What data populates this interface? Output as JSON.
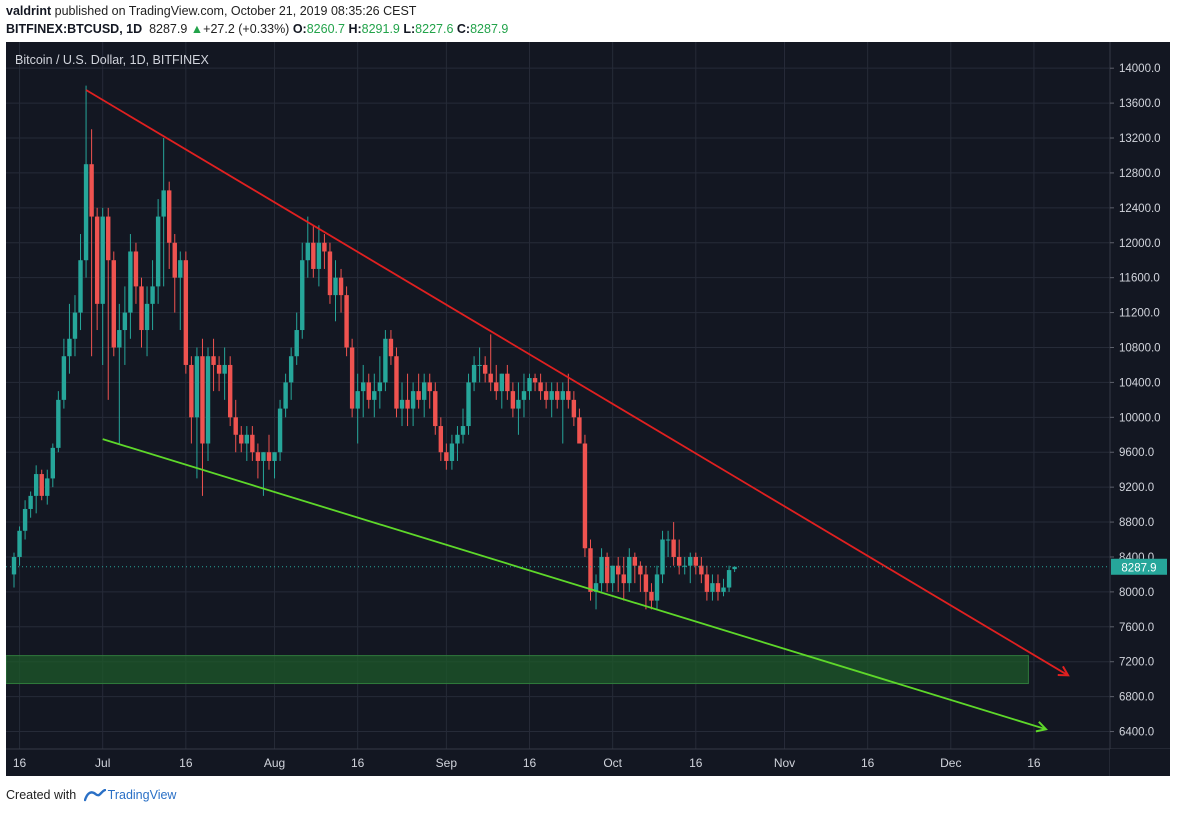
{
  "header": {
    "author": "valdrint",
    "published_text": "published on TradingView.com, October 21, 2019 08:35:26 CEST",
    "symbol": "BITFINEX:BTCUSD, 1D",
    "last": "8287.9",
    "change_arrow": "▲",
    "change": "+27.2 (+0.33%)",
    "o_label": "O:",
    "o_val": "8260.7",
    "h_label": "H:",
    "h_val": "8291.9",
    "l_label": "L:",
    "l_val": "8227.6",
    "c_label": "C:",
    "c_val": "8287.9"
  },
  "footer": {
    "created_with": "Created with",
    "brand": "TradingView"
  },
  "colors": {
    "background": "#131722",
    "up": "#26a69a",
    "down": "#ef5350",
    "resistance": "#e02020",
    "support": "#5ed82a",
    "zone": "#1d5a2a",
    "grid": "#262b38",
    "axis_text": "#d1d4dc"
  },
  "chart_data": {
    "type": "candlestick",
    "title": "Bitcoin / U.S. Dollar, 1D, BITFINEX",
    "ylim": [
      6200,
      14300
    ],
    "y_ticks": [
      "14000.0",
      "13600.0",
      "13200.0",
      "12800.0",
      "12400.0",
      "12000.0",
      "11600.0",
      "11200.0",
      "10800.0",
      "10400.0",
      "10000.0",
      "9600.0",
      "9200.0",
      "8800.0",
      "8400.0",
      "8000.0",
      "7600.0",
      "7200.0",
      "6800.0",
      "6400.0"
    ],
    "x_ticks": [
      "16",
      "Jul",
      "16",
      "Aug",
      "16",
      "Sep",
      "16",
      "Oct",
      "16",
      "Nov",
      "16",
      "Dec",
      "16"
    ],
    "x_tick_days": [
      15,
      30,
      45,
      61,
      76,
      92,
      107,
      122,
      137,
      153,
      168,
      183,
      198
    ],
    "x_range_days": [
      14,
      211
    ],
    "last_price_label": "8287.9",
    "last_price": 8287.9,
    "candles": [
      {
        "d": 14,
        "o": 8200,
        "h": 8450,
        "l": 8050,
        "c": 8400
      },
      {
        "d": 15,
        "o": 8400,
        "h": 8750,
        "l": 8300,
        "c": 8700
      },
      {
        "d": 16,
        "o": 8700,
        "h": 9050,
        "l": 8600,
        "c": 8950
      },
      {
        "d": 17,
        "o": 8950,
        "h": 9150,
        "l": 8850,
        "c": 9100
      },
      {
        "d": 18,
        "o": 9100,
        "h": 9450,
        "l": 8900,
        "c": 9350
      },
      {
        "d": 19,
        "o": 9350,
        "h": 9400,
        "l": 9050,
        "c": 9100
      },
      {
        "d": 20,
        "o": 9100,
        "h": 9400,
        "l": 9000,
        "c": 9300
      },
      {
        "d": 21,
        "o": 9300,
        "h": 9700,
        "l": 9200,
        "c": 9650
      },
      {
        "d": 22,
        "o": 9650,
        "h": 10300,
        "l": 9600,
        "c": 10200
      },
      {
        "d": 23,
        "o": 10200,
        "h": 10900,
        "l": 10100,
        "c": 10700
      },
      {
        "d": 24,
        "o": 10700,
        "h": 11300,
        "l": 10500,
        "c": 10900
      },
      {
        "d": 25,
        "o": 10900,
        "h": 11400,
        "l": 10700,
        "c": 11200
      },
      {
        "d": 26,
        "o": 11200,
        "h": 12100,
        "l": 11000,
        "c": 11800
      },
      {
        "d": 27,
        "o": 11800,
        "h": 13800,
        "l": 11600,
        "c": 12900
      },
      {
        "d": 28,
        "o": 12900,
        "h": 13300,
        "l": 10700,
        "c": 12300
      },
      {
        "d": 29,
        "o": 12300,
        "h": 12400,
        "l": 11000,
        "c": 11300
      },
      {
        "d": 30,
        "o": 11300,
        "h": 12400,
        "l": 10600,
        "c": 12300
      },
      {
        "d": 31,
        "o": 12300,
        "h": 12400,
        "l": 10200,
        "c": 11800
      },
      {
        "d": 32,
        "o": 11800,
        "h": 11900,
        "l": 10700,
        "c": 10800
      },
      {
        "d": 33,
        "o": 10800,
        "h": 11300,
        "l": 9700,
        "c": 11000
      },
      {
        "d": 34,
        "o": 11000,
        "h": 11500,
        "l": 10600,
        "c": 11200
      },
      {
        "d": 35,
        "o": 11200,
        "h": 12100,
        "l": 10900,
        "c": 11900
      },
      {
        "d": 36,
        "o": 11900,
        "h": 12000,
        "l": 11300,
        "c": 11500
      },
      {
        "d": 37,
        "o": 11500,
        "h": 11600,
        "l": 10800,
        "c": 11000
      },
      {
        "d": 38,
        "o": 11000,
        "h": 11500,
        "l": 10700,
        "c": 11300
      },
      {
        "d": 39,
        "o": 11300,
        "h": 11800,
        "l": 11000,
        "c": 11500
      },
      {
        "d": 40,
        "o": 11500,
        "h": 12500,
        "l": 11300,
        "c": 12300
      },
      {
        "d": 41,
        "o": 12300,
        "h": 13200,
        "l": 11500,
        "c": 12600
      },
      {
        "d": 42,
        "o": 12600,
        "h": 12700,
        "l": 11700,
        "c": 12000
      },
      {
        "d": 43,
        "o": 12000,
        "h": 12100,
        "l": 11200,
        "c": 11600
      },
      {
        "d": 44,
        "o": 11600,
        "h": 11900,
        "l": 11000,
        "c": 11800
      },
      {
        "d": 45,
        "o": 11800,
        "h": 11900,
        "l": 10500,
        "c": 10600
      },
      {
        "d": 46,
        "o": 10600,
        "h": 10700,
        "l": 9700,
        "c": 10000
      },
      {
        "d": 47,
        "o": 10000,
        "h": 10800,
        "l": 9300,
        "c": 10700
      },
      {
        "d": 48,
        "o": 10700,
        "h": 10900,
        "l": 9100,
        "c": 9700
      },
      {
        "d": 49,
        "o": 9700,
        "h": 10800,
        "l": 9500,
        "c": 10700
      },
      {
        "d": 50,
        "o": 10700,
        "h": 10900,
        "l": 10300,
        "c": 10600
      },
      {
        "d": 51,
        "o": 10600,
        "h": 10700,
        "l": 10300,
        "c": 10500
      },
      {
        "d": 52,
        "o": 10500,
        "h": 10800,
        "l": 10200,
        "c": 10600
      },
      {
        "d": 53,
        "o": 10600,
        "h": 10700,
        "l": 9900,
        "c": 10000
      },
      {
        "d": 54,
        "o": 10000,
        "h": 10200,
        "l": 9600,
        "c": 9800
      },
      {
        "d": 55,
        "o": 9800,
        "h": 9900,
        "l": 9600,
        "c": 9700
      },
      {
        "d": 56,
        "o": 9700,
        "h": 9900,
        "l": 9500,
        "c": 9800
      },
      {
        "d": 57,
        "o": 9800,
        "h": 9900,
        "l": 9500,
        "c": 9600
      },
      {
        "d": 58,
        "o": 9600,
        "h": 9700,
        "l": 9300,
        "c": 9500
      },
      {
        "d": 59,
        "o": 9500,
        "h": 9600,
        "l": 9100,
        "c": 9600
      },
      {
        "d": 60,
        "o": 9600,
        "h": 9800,
        "l": 9400,
        "c": 9500
      },
      {
        "d": 61,
        "o": 9500,
        "h": 9600,
        "l": 9300,
        "c": 9600
      },
      {
        "d": 62,
        "o": 9600,
        "h": 10200,
        "l": 9500,
        "c": 10100
      },
      {
        "d": 63,
        "o": 10100,
        "h": 10500,
        "l": 10000,
        "c": 10400
      },
      {
        "d": 64,
        "o": 10400,
        "h": 10800,
        "l": 10200,
        "c": 10700
      },
      {
        "d": 65,
        "o": 10700,
        "h": 11200,
        "l": 10600,
        "c": 11000
      },
      {
        "d": 66,
        "o": 11000,
        "h": 12000,
        "l": 10900,
        "c": 11800
      },
      {
        "d": 67,
        "o": 11800,
        "h": 12300,
        "l": 11600,
        "c": 12000
      },
      {
        "d": 68,
        "o": 12000,
        "h": 12200,
        "l": 11600,
        "c": 11700
      },
      {
        "d": 69,
        "o": 11700,
        "h": 12200,
        "l": 11500,
        "c": 12000
      },
      {
        "d": 70,
        "o": 12000,
        "h": 12100,
        "l": 11700,
        "c": 11900
      },
      {
        "d": 71,
        "o": 11900,
        "h": 12000,
        "l": 11300,
        "c": 11400
      },
      {
        "d": 72,
        "o": 11400,
        "h": 11800,
        "l": 11100,
        "c": 11600
      },
      {
        "d": 73,
        "o": 11600,
        "h": 11700,
        "l": 11200,
        "c": 11400
      },
      {
        "d": 74,
        "o": 11400,
        "h": 11500,
        "l": 10700,
        "c": 10800
      },
      {
        "d": 75,
        "o": 10800,
        "h": 10900,
        "l": 10000,
        "c": 10100
      },
      {
        "d": 76,
        "o": 10100,
        "h": 10500,
        "l": 9700,
        "c": 10300
      },
      {
        "d": 77,
        "o": 10300,
        "h": 10600,
        "l": 10000,
        "c": 10400
      },
      {
        "d": 78,
        "o": 10400,
        "h": 10500,
        "l": 10100,
        "c": 10200
      },
      {
        "d": 79,
        "o": 10200,
        "h": 10500,
        "l": 10000,
        "c": 10300
      },
      {
        "d": 80,
        "o": 10300,
        "h": 10700,
        "l": 10100,
        "c": 10400
      },
      {
        "d": 81,
        "o": 10400,
        "h": 11000,
        "l": 10300,
        "c": 10900
      },
      {
        "d": 82,
        "o": 10900,
        "h": 11000,
        "l": 10600,
        "c": 10700
      },
      {
        "d": 83,
        "o": 10700,
        "h": 10800,
        "l": 10000,
        "c": 10100
      },
      {
        "d": 84,
        "o": 10100,
        "h": 10400,
        "l": 9900,
        "c": 10200
      },
      {
        "d": 85,
        "o": 10200,
        "h": 10500,
        "l": 9900,
        "c": 10100
      },
      {
        "d": 86,
        "o": 10100,
        "h": 10400,
        "l": 9900,
        "c": 10300
      },
      {
        "d": 87,
        "o": 10300,
        "h": 10500,
        "l": 10100,
        "c": 10200
      },
      {
        "d": 88,
        "o": 10200,
        "h": 10500,
        "l": 10000,
        "c": 10400
      },
      {
        "d": 89,
        "o": 10400,
        "h": 10500,
        "l": 10100,
        "c": 10300
      },
      {
        "d": 90,
        "o": 10300,
        "h": 10400,
        "l": 9800,
        "c": 9900
      },
      {
        "d": 91,
        "o": 9900,
        "h": 10000,
        "l": 9500,
        "c": 9600
      },
      {
        "d": 92,
        "o": 9600,
        "h": 9700,
        "l": 9400,
        "c": 9500
      },
      {
        "d": 93,
        "o": 9500,
        "h": 9800,
        "l": 9400,
        "c": 9700
      },
      {
        "d": 94,
        "o": 9700,
        "h": 9900,
        "l": 9500,
        "c": 9800
      },
      {
        "d": 95,
        "o": 9800,
        "h": 10100,
        "l": 9700,
        "c": 9900
      },
      {
        "d": 96,
        "o": 9900,
        "h": 10500,
        "l": 9800,
        "c": 10400
      },
      {
        "d": 97,
        "o": 10400,
        "h": 10700,
        "l": 10300,
        "c": 10600
      },
      {
        "d": 98,
        "o": 10600,
        "h": 10800,
        "l": 10400,
        "c": 10600
      },
      {
        "d": 99,
        "o": 10600,
        "h": 10700,
        "l": 10400,
        "c": 10500
      },
      {
        "d": 100,
        "o": 10500,
        "h": 10950,
        "l": 10300,
        "c": 10400
      },
      {
        "d": 101,
        "o": 10400,
        "h": 10600,
        "l": 10200,
        "c": 10300
      },
      {
        "d": 102,
        "o": 10300,
        "h": 10500,
        "l": 10100,
        "c": 10500
      },
      {
        "d": 103,
        "o": 10500,
        "h": 10600,
        "l": 10200,
        "c": 10300
      },
      {
        "d": 104,
        "o": 10300,
        "h": 10400,
        "l": 10000,
        "c": 10100
      },
      {
        "d": 105,
        "o": 10100,
        "h": 10400,
        "l": 9800,
        "c": 10200
      },
      {
        "d": 106,
        "o": 10200,
        "h": 10500,
        "l": 10000,
        "c": 10300
      },
      {
        "d": 107,
        "o": 10300,
        "h": 10500,
        "l": 10200,
        "c": 10450
      },
      {
        "d": 108,
        "o": 10450,
        "h": 10500,
        "l": 10300,
        "c": 10400
      },
      {
        "d": 109,
        "o": 10400,
        "h": 10500,
        "l": 10200,
        "c": 10300
      },
      {
        "d": 110,
        "o": 10300,
        "h": 10400,
        "l": 10100,
        "c": 10200
      },
      {
        "d": 111,
        "o": 10200,
        "h": 10400,
        "l": 10000,
        "c": 10300
      },
      {
        "d": 112,
        "o": 10300,
        "h": 10400,
        "l": 10100,
        "c": 10200
      },
      {
        "d": 113,
        "o": 10200,
        "h": 10400,
        "l": 9700,
        "c": 10300
      },
      {
        "d": 114,
        "o": 10300,
        "h": 10500,
        "l": 10100,
        "c": 10200
      },
      {
        "d": 115,
        "o": 10200,
        "h": 10300,
        "l": 9900,
        "c": 10000
      },
      {
        "d": 116,
        "o": 10000,
        "h": 10100,
        "l": 9700,
        "c": 9700
      },
      {
        "d": 117,
        "o": 9700,
        "h": 9800,
        "l": 8400,
        "c": 8500
      },
      {
        "d": 118,
        "o": 8500,
        "h": 8600,
        "l": 7900,
        "c": 8000
      },
      {
        "d": 119,
        "o": 8000,
        "h": 8200,
        "l": 7800,
        "c": 8100
      },
      {
        "d": 120,
        "o": 8100,
        "h": 8500,
        "l": 8000,
        "c": 8400
      },
      {
        "d": 121,
        "o": 8400,
        "h": 8450,
        "l": 8000,
        "c": 8100
      },
      {
        "d": 122,
        "o": 8100,
        "h": 8300,
        "l": 8000,
        "c": 8300
      },
      {
        "d": 123,
        "o": 8300,
        "h": 8400,
        "l": 8000,
        "c": 8200
      },
      {
        "d": 124,
        "o": 8200,
        "h": 8400,
        "l": 7900,
        "c": 8100
      },
      {
        "d": 125,
        "o": 8100,
        "h": 8500,
        "l": 8000,
        "c": 8400
      },
      {
        "d": 126,
        "o": 8400,
        "h": 8450,
        "l": 8100,
        "c": 8300
      },
      {
        "d": 127,
        "o": 8300,
        "h": 8350,
        "l": 8000,
        "c": 8200
      },
      {
        "d": 128,
        "o": 8200,
        "h": 8300,
        "l": 7800,
        "c": 8000
      },
      {
        "d": 129,
        "o": 8000,
        "h": 8100,
        "l": 7800,
        "c": 7900
      },
      {
        "d": 130,
        "o": 7900,
        "h": 8300,
        "l": 7800,
        "c": 8200
      },
      {
        "d": 131,
        "o": 8200,
        "h": 8700,
        "l": 8100,
        "c": 8600
      },
      {
        "d": 132,
        "o": 8600,
        "h": 8700,
        "l": 8400,
        "c": 8600
      },
      {
        "d": 133,
        "o": 8600,
        "h": 8800,
        "l": 8300,
        "c": 8400
      },
      {
        "d": 134,
        "o": 8400,
        "h": 8600,
        "l": 8200,
        "c": 8300
      },
      {
        "d": 135,
        "o": 8300,
        "h": 8400,
        "l": 8200,
        "c": 8300
      },
      {
        "d": 136,
        "o": 8300,
        "h": 8450,
        "l": 8100,
        "c": 8400
      },
      {
        "d": 137,
        "o": 8400,
        "h": 8450,
        "l": 8200,
        "c": 8300
      },
      {
        "d": 138,
        "o": 8300,
        "h": 8400,
        "l": 8100,
        "c": 8200
      },
      {
        "d": 139,
        "o": 8200,
        "h": 8300,
        "l": 7900,
        "c": 8000
      },
      {
        "d": 140,
        "o": 8000,
        "h": 8200,
        "l": 7900,
        "c": 8100
      },
      {
        "d": 141,
        "o": 8100,
        "h": 8200,
        "l": 7900,
        "c": 8000
      },
      {
        "d": 142,
        "o": 8000,
        "h": 8150,
        "l": 7950,
        "c": 8050
      },
      {
        "d": 143,
        "o": 8050,
        "h": 8300,
        "l": 8000,
        "c": 8250
      },
      {
        "d": 144,
        "o": 8260.7,
        "h": 8291.9,
        "l": 8227.6,
        "c": 8287.9
      }
    ],
    "drawings": {
      "resistance_line": {
        "d1": 27,
        "p1": 13750,
        "d2": 204,
        "p2": 7050
      },
      "support_line": {
        "d1": 30,
        "p1": 9750,
        "d2": 200,
        "p2": 6430
      },
      "demand_zone": {
        "d1": 14,
        "d2": 197,
        "low": 6950,
        "high": 7270
      }
    }
  }
}
